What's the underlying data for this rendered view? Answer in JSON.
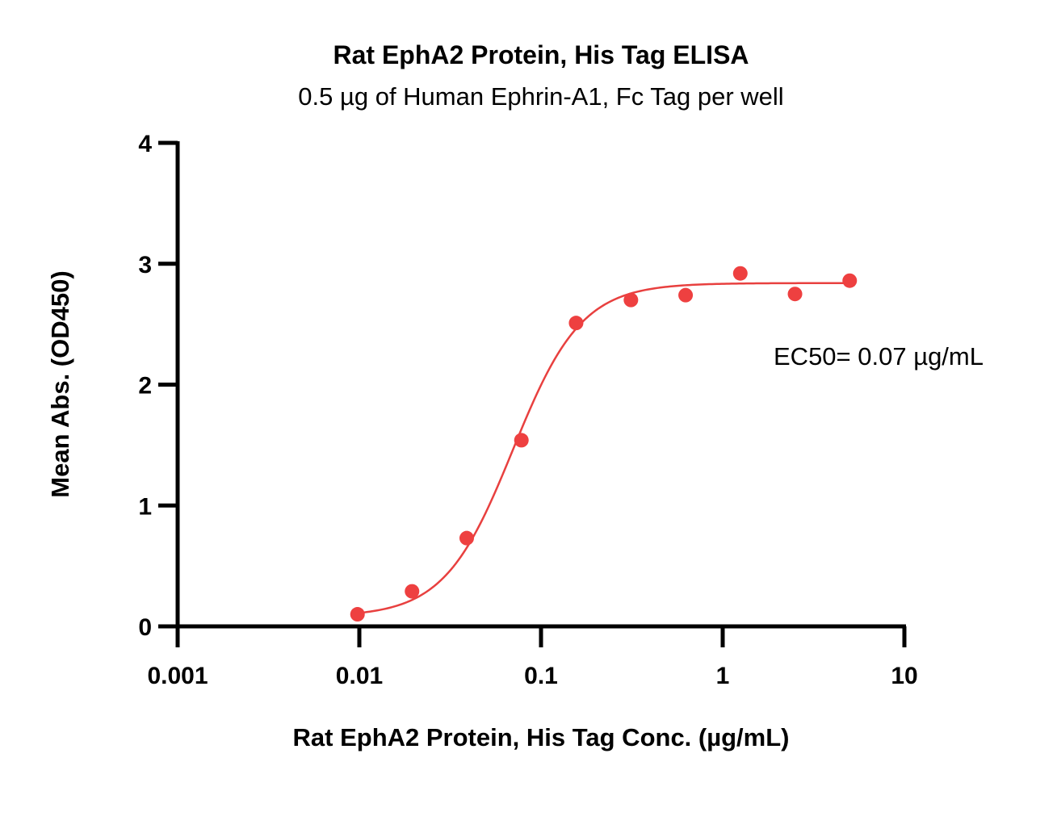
{
  "chart_data": {
    "type": "scatter",
    "title": "Rat EphA2 Protein, His Tag ELISA",
    "subtitle": "0.5 µg of Human Ephrin-A1, Fc Tag per well",
    "xlabel": "Rat EphA2 Protein, His Tag Conc. (µg/mL)",
    "ylabel": "Mean Abs. (OD450)",
    "xscale": "log",
    "xlim": [
      0.001,
      10
    ],
    "ylim": [
      0,
      4
    ],
    "xticks": [
      0.001,
      0.01,
      0.1,
      1,
      10
    ],
    "xtick_labels": [
      "0.001",
      "0.01",
      "0.1",
      "1",
      "10"
    ],
    "yticks": [
      0,
      1,
      2,
      3,
      4
    ],
    "ytick_labels": [
      "0",
      "1",
      "2",
      "3",
      "4"
    ],
    "grid": false,
    "series": [
      {
        "x": [
          0.00977,
          0.0195,
          0.039,
          0.078,
          0.156,
          0.3125,
          0.625,
          1.25,
          2.5,
          5
        ],
        "y": [
          0.1,
          0.29,
          0.73,
          1.54,
          2.51,
          2.7,
          2.74,
          2.92,
          2.75,
          2.86
        ],
        "color": "#ee4040"
      }
    ],
    "fit": {
      "bottom": 0.08,
      "top": 2.84,
      "ec50": 0.07,
      "hill": 2.3,
      "color": "#e8403f"
    },
    "annotation": "EC50= 0.07 µg/mL"
  }
}
